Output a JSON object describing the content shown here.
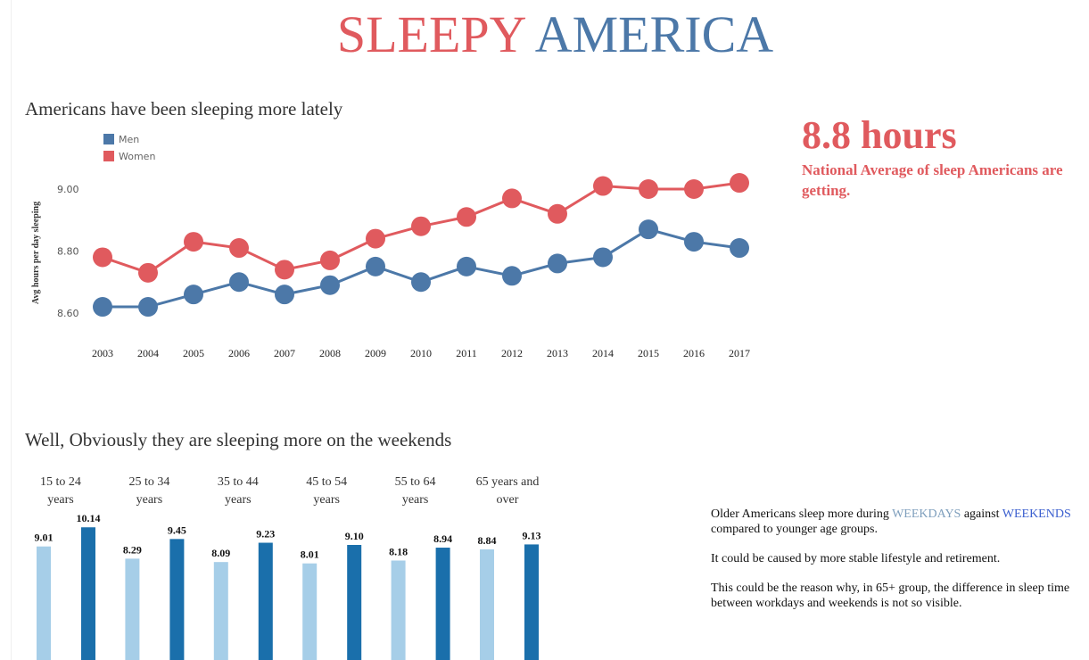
{
  "header": {
    "title_part1": "SLEEPY",
    "title_part2": "AMERICA",
    "color_part1": "#e05a5e",
    "color_part2": "#4c78a8"
  },
  "section1": {
    "heading": "Americans have been sleeping more lately"
  },
  "highlight": {
    "value": "8.8 hours",
    "caption": "National Average of sleep Americans are getting."
  },
  "section2": {
    "heading": "Well, Obviously they are sleeping more on the weekends"
  },
  "notes": {
    "p1_before": "Older Americans sleep more during",
    "p1_weekdays": "WEEKDAYS",
    "p1_mid": "against",
    "p1_weekends": "WEEKENDS",
    "p1_after": "compared to younger age groups.",
    "p2": "It could be caused by more stable lifestyle and retirement.",
    "p3": "This could be the reason why, in 65+ group, the difference in sleep time between workdays and weekends is not so visible."
  },
  "chart_data": [
    {
      "type": "line",
      "title": "Americans have been sleeping more lately",
      "xlabel": "",
      "ylabel": "Avg hours per day sleeping",
      "x": [
        "2003",
        "2004",
        "2005",
        "2006",
        "2007",
        "2008",
        "2009",
        "2010",
        "2011",
        "2012",
        "2013",
        "2014",
        "2015",
        "2016",
        "2017"
      ],
      "yticks": [
        "8.60",
        "8.80",
        "9.00"
      ],
      "ylim": [
        8.6,
        9.0
      ],
      "grid": false,
      "legend_position": "top-left",
      "series": [
        {
          "name": "Men",
          "color": "#4c78a8",
          "values": [
            8.62,
            8.62,
            8.66,
            8.7,
            8.66,
            8.69,
            8.75,
            8.7,
            8.75,
            8.72,
            8.76,
            8.78,
            8.87,
            8.83,
            8.81
          ]
        },
        {
          "name": "Women",
          "color": "#e05a5e",
          "values": [
            8.78,
            8.73,
            8.83,
            8.81,
            8.74,
            8.77,
            8.84,
            8.88,
            8.91,
            8.97,
            8.92,
            9.01,
            9.0,
            9.0,
            9.02
          ]
        }
      ]
    },
    {
      "type": "bar",
      "title": "Well, Obviously they are sleeping more on the weekends",
      "categories": [
        [
          "15 to 24",
          "years"
        ],
        [
          "25 to 34",
          "years"
        ],
        [
          "35 to 44",
          "years"
        ],
        [
          "45 to 54",
          "years"
        ],
        [
          "55 to 64",
          "years"
        ],
        [
          "65 years and",
          "over"
        ]
      ],
      "series": [
        {
          "name": "Weekdays",
          "color": "#a6cee8",
          "values": [
            9.01,
            8.29,
            8.09,
            8.01,
            8.18,
            8.84
          ],
          "labels": [
            "9.01",
            "8.29",
            "8.09",
            "8.01",
            "8.18",
            "8.84"
          ]
        },
        {
          "name": "Weekends",
          "color": "#1a6fab",
          "values": [
            10.14,
            9.45,
            9.23,
            9.1,
            8.94,
            9.13
          ],
          "labels": [
            "10.14",
            "9.45",
            "9.23",
            "9.10",
            "8.94",
            "9.13"
          ]
        }
      ]
    }
  ]
}
